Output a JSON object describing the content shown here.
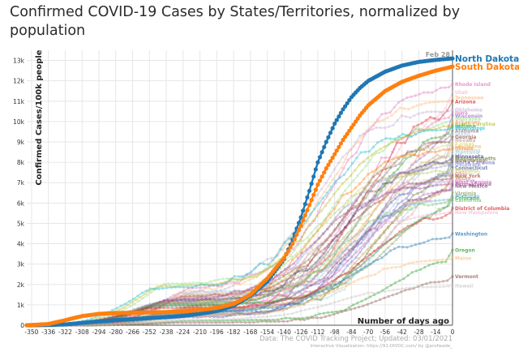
{
  "title": "Confirmed COVID-19 Cases by States/Territories, normalized by population",
  "source": "Data: The COVID Tracking Project; Updated: 03/01/2021",
  "viz_credit": "Interactive Visualization: https://91-DIVOC.com/ by @profwade_",
  "chart_data": {
    "type": "line",
    "title": "Confirmed COVID-19 Cases by States/Territories, normalized by population",
    "xlabel": "Number of days ago",
    "ylabel": "Confirmed Cases/100k people",
    "x_range": [
      -354,
      0
    ],
    "xlim": [
      -354,
      0
    ],
    "ylim": [
      0,
      13500
    ],
    "x_ticks": [
      -350,
      -336,
      -322,
      -308,
      -294,
      -280,
      -266,
      -252,
      -238,
      -224,
      -210,
      -196,
      -182,
      -168,
      -154,
      -140,
      -126,
      -112,
      -98,
      -84,
      -70,
      -56,
      -42,
      -28,
      -14,
      0
    ],
    "x_tick_labels": [
      "-350",
      "-336",
      "-322",
      "-308",
      "-294",
      "-280",
      "-266",
      "-252",
      "-238",
      "-224",
      "-210",
      "-196",
      "-182",
      "-168",
      "-154",
      "-140",
      "-126",
      "-112",
      "-98",
      "-84",
      "-70",
      "-56",
      "-42",
      "-28",
      "-14",
      "0"
    ],
    "y_ticks": [
      0,
      1000,
      2000,
      3000,
      4000,
      5000,
      6000,
      7000,
      8000,
      9000,
      10000,
      11000,
      12000,
      13000
    ],
    "y_tick_labels": [
      "0",
      "1k",
      "2k",
      "3k",
      "4k",
      "5k",
      "6k",
      "7k",
      "8k",
      "9k",
      "10k",
      "11k",
      "12k",
      "13k"
    ],
    "grid": true,
    "annotation": "Feb 28",
    "highlight_series": [
      {
        "name": "North Dakota",
        "color": "#1f77b4",
        "points": [
          [
            -354,
            0
          ],
          [
            -336,
            10
          ],
          [
            -322,
            40
          ],
          [
            -308,
            120
          ],
          [
            -294,
            190
          ],
          [
            -280,
            250
          ],
          [
            -266,
            300
          ],
          [
            -252,
            350
          ],
          [
            -238,
            400
          ],
          [
            -224,
            460
          ],
          [
            -210,
            560
          ],
          [
            -196,
            700
          ],
          [
            -182,
            960
          ],
          [
            -168,
            1450
          ],
          [
            -154,
            2150
          ],
          [
            -140,
            3250
          ],
          [
            -133,
            4200
          ],
          [
            -126,
            5300
          ],
          [
            -119,
            6600
          ],
          [
            -112,
            8000
          ],
          [
            -105,
            9000
          ],
          [
            -98,
            9900
          ],
          [
            -91,
            10600
          ],
          [
            -84,
            11200
          ],
          [
            -77,
            11650
          ],
          [
            -70,
            12000
          ],
          [
            -56,
            12450
          ],
          [
            -42,
            12750
          ],
          [
            -28,
            12930
          ],
          [
            -14,
            13030
          ],
          [
            0,
            13100
          ]
        ]
      },
      {
        "name": "South Dakota",
        "color": "#ff7f0e",
        "points": [
          [
            -354,
            0
          ],
          [
            -336,
            60
          ],
          [
            -322,
            250
          ],
          [
            -308,
            450
          ],
          [
            -294,
            560
          ],
          [
            -280,
            600
          ],
          [
            -266,
            620
          ],
          [
            -252,
            630
          ],
          [
            -238,
            650
          ],
          [
            -224,
            680
          ],
          [
            -210,
            750
          ],
          [
            -196,
            850
          ],
          [
            -182,
            1050
          ],
          [
            -168,
            1500
          ],
          [
            -154,
            2300
          ],
          [
            -140,
            3300
          ],
          [
            -133,
            4000
          ],
          [
            -126,
            4900
          ],
          [
            -119,
            5900
          ],
          [
            -112,
            6900
          ],
          [
            -105,
            7700
          ],
          [
            -98,
            8400
          ],
          [
            -91,
            9100
          ],
          [
            -84,
            9700
          ],
          [
            -77,
            10300
          ],
          [
            -70,
            10800
          ],
          [
            -56,
            11500
          ],
          [
            -42,
            11950
          ],
          [
            -28,
            12250
          ],
          [
            -14,
            12500
          ],
          [
            0,
            12700
          ]
        ]
      }
    ],
    "series": [
      {
        "name": "Rhode Island",
        "color": "#e377c2",
        "final": 11850
      },
      {
        "name": "Utah",
        "color": "#f7b6d2",
        "final": 11450
      },
      {
        "name": "Tennessee",
        "color": "#ffbb78",
        "final": 11200
      },
      {
        "name": "Arizona",
        "color": "#d62728",
        "final": 11000
      },
      {
        "name": "Oklahoma",
        "color": "#c5b0d5",
        "final": 10600
      },
      {
        "name": "Iowa",
        "color": "#e377c2",
        "final": 10450
      },
      {
        "name": "Wisconsin",
        "color": "#9467bd",
        "final": 10300
      },
      {
        "name": "Nebraska",
        "color": "#98df8a",
        "final": 10150
      },
      {
        "name": "Arkansas",
        "color": "#ff9896",
        "final": 10000
      },
      {
        "name": "South Carolina",
        "color": "#bcbd22",
        "final": 9900
      },
      {
        "name": "Indiana",
        "color": "#2ca02c",
        "final": 9800
      },
      {
        "name": "Mississippi",
        "color": "#17becf",
        "final": 9700
      },
      {
        "name": "Alabama",
        "color": "#7f7f7f",
        "final": 9550
      },
      {
        "name": "Idaho",
        "color": "#aec7e8",
        "final": 9400
      },
      {
        "name": "Georgia",
        "color": "#8c564b",
        "final": 9250
      },
      {
        "name": "Nevada",
        "color": "#c49c94",
        "final": 9100
      },
      {
        "name": "Kansas",
        "color": "#dbdb8d",
        "final": 8950
      },
      {
        "name": "Louisiana",
        "color": "#e7ba52",
        "final": 8800
      },
      {
        "name": "Illinois",
        "color": "#ff7f0e",
        "final": 8700
      },
      {
        "name": "Wyoming",
        "color": "#c7c7c7",
        "final": 8600
      },
      {
        "name": "Montana",
        "color": "#9edae5",
        "final": 8500
      },
      {
        "name": "Minnesota",
        "color": "#393b79",
        "final": 8300
      },
      {
        "name": "Massachusetts",
        "color": "#637939",
        "final": 8200
      },
      {
        "name": "New Jersey",
        "color": "#8c6d31",
        "final": 8100
      },
      {
        "name": "North Carolina",
        "color": "#6b6ecf",
        "final": 8000
      },
      {
        "name": "Delaware",
        "color": "#9c9ede",
        "final": 7900
      },
      {
        "name": "Connecticut",
        "color": "#5254a3",
        "final": 7750
      },
      {
        "name": "Missouri",
        "color": "#b5cf6b",
        "final": 7650
      },
      {
        "name": "Kentucky",
        "color": "#cedb9c",
        "final": 7550
      },
      {
        "name": "Ohio",
        "color": "#e7969c",
        "final": 7450
      },
      {
        "name": "New York",
        "color": "#ad494a",
        "final": 7350
      },
      {
        "name": "Texas",
        "color": "#bd9e39",
        "final": 7250
      },
      {
        "name": "Florida",
        "color": "#de9ed6",
        "final": 7150
      },
      {
        "name": "West Virginia",
        "color": "#ce6dbd",
        "final": 7050
      },
      {
        "name": "Pennsylvania",
        "color": "#a55194",
        "final": 6950
      },
      {
        "name": "New Mexico",
        "color": "#7b4173",
        "final": 6850
      },
      {
        "name": "Virginia",
        "color": "#8ca252",
        "final": 6500
      },
      {
        "name": "Michigan",
        "color": "#6baed6",
        "final": 6350
      },
      {
        "name": "Colorado",
        "color": "#31a354",
        "final": 6250
      },
      {
        "name": "California",
        "color": "#74c476",
        "final": 6150
      },
      {
        "name": "District of Columbia",
        "color": "#d62728",
        "final": 5750
      },
      {
        "name": "New Hampshire",
        "color": "#f7b6d2",
        "final": 5550
      },
      {
        "name": "Washington",
        "color": "#1f77b4",
        "final": 4500
      },
      {
        "name": "Oregon",
        "color": "#2ca02c",
        "final": 3700
      },
      {
        "name": "Maine",
        "color": "#ffbb78",
        "final": 3300
      },
      {
        "name": "Vermont",
        "color": "#8c564b",
        "final": 2400
      },
      {
        "name": "Hawaii",
        "color": "#c7c7c7",
        "final": 1950
      }
    ]
  }
}
